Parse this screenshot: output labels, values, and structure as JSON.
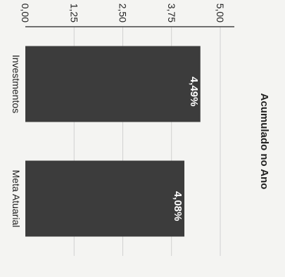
{
  "chart_data": {
    "type": "bar",
    "title": "Acumulado no Ano",
    "categories": [
      "Investmentos",
      "Meta Atuarial"
    ],
    "series": [
      {
        "values": [
          4.49,
          4.08
        ],
        "labels": [
          "4,49%",
          "4,08%"
        ]
      }
    ],
    "ylim": [
      0,
      5
    ],
    "y_ticks": [
      "0,00",
      "1,25",
      "2,50",
      "3,75",
      "5,00"
    ],
    "grid": true,
    "orientation": "rotated 90 degrees clockwise",
    "colors": {
      "bar": "#3c3c3c",
      "bar_label": "#ffffff",
      "text": "#222222",
      "grid": "#c8c8c8"
    }
  }
}
